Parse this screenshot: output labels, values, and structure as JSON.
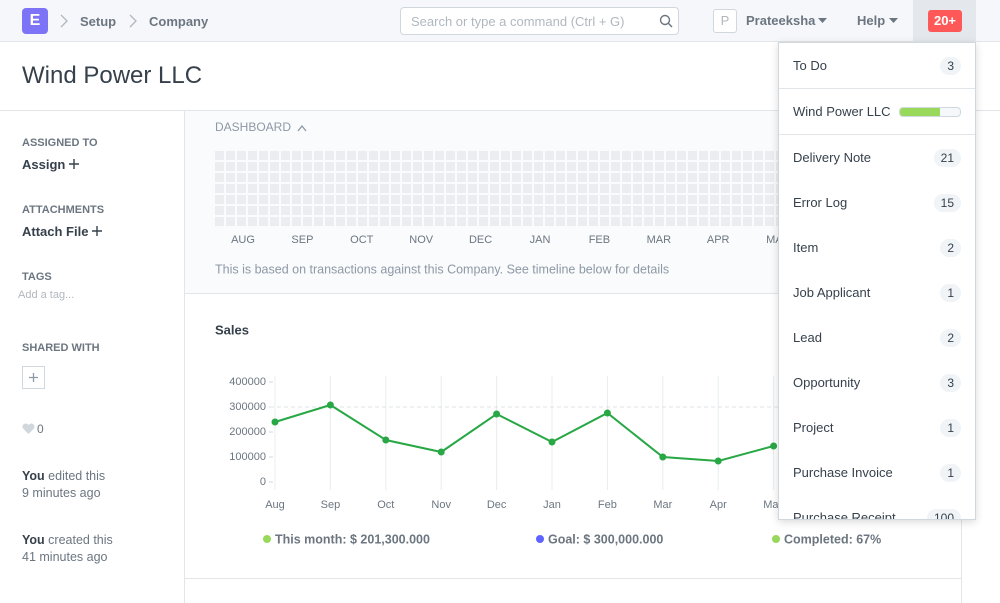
{
  "navbar": {
    "logo": "E",
    "breadcrumbs": [
      "Setup",
      "Company"
    ],
    "search_placeholder": "Search or type a command (Ctrl + G)",
    "avatar": "P",
    "user": "Prateeksha",
    "help": "Help",
    "notifications": "20+"
  },
  "page": {
    "title": "Wind Power LLC"
  },
  "sidebar": {
    "assigned_to": {
      "heading": "ASSIGNED TO",
      "action": "Assign"
    },
    "attachments": {
      "heading": "ATTACHMENTS",
      "action": "Attach File"
    },
    "tags": {
      "heading": "TAGS",
      "placeholder": "Add a tag..."
    },
    "shared_with": {
      "heading": "SHARED WITH"
    },
    "likes": 0,
    "timeline": [
      {
        "who": "You",
        "action": "edited this",
        "when": "9 minutes ago"
      },
      {
        "who": "You",
        "action": "created this",
        "when": "41 minutes ago"
      }
    ]
  },
  "dashboard": {
    "heading": "DASHBOARD",
    "heatmap_months": [
      "AUG",
      "SEP",
      "OCT",
      "NOV",
      "DEC",
      "JAN",
      "FEB",
      "MAR",
      "APR",
      "MAY"
    ],
    "note": "This is based on transactions against this Company. See timeline below for details"
  },
  "chart_data": {
    "type": "line",
    "title": "Sales",
    "categories": [
      "Aug",
      "Sep",
      "Oct",
      "Nov",
      "Dec",
      "Jan",
      "Feb",
      "Mar",
      "Apr",
      "May"
    ],
    "values": [
      240000,
      308000,
      168000,
      120000,
      272000,
      160000,
      276000,
      100000,
      84000,
      144000
    ],
    "color": "#28a745",
    "goal": 300000,
    "ylim": [
      0,
      400000
    ],
    "yticks": [
      0,
      100000,
      200000,
      300000,
      400000
    ],
    "summary": [
      {
        "label": "This month: $ 201,300.000",
        "color": "#98d85b"
      },
      {
        "label": "Goal: $ 300,000.000",
        "color": "#5e64ff"
      },
      {
        "label": "Completed: 67%",
        "color": "#98d85b"
      }
    ]
  },
  "dropdown": {
    "items": [
      {
        "label": "To Do",
        "count": 3
      },
      {
        "label": "Wind Power LLC",
        "progress": 67
      },
      {
        "label": "Delivery Note",
        "count": 21
      },
      {
        "label": "Error Log",
        "count": 15
      },
      {
        "label": "Item",
        "count": 2
      },
      {
        "label": "Job Applicant",
        "count": 1
      },
      {
        "label": "Lead",
        "count": 2
      },
      {
        "label": "Opportunity",
        "count": 3
      },
      {
        "label": "Project",
        "count": 1
      },
      {
        "label": "Purchase Invoice",
        "count": 1
      },
      {
        "label": "Purchase Receipt",
        "count": 100
      }
    ]
  }
}
